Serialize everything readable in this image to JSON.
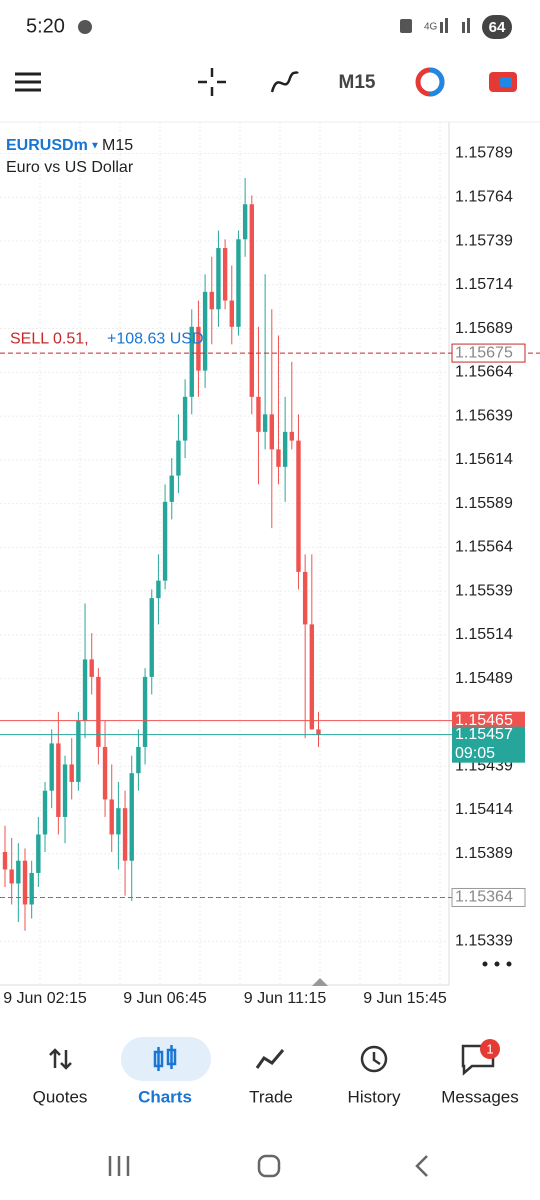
{
  "status_bar": {
    "time": "5:20",
    "battery": "64"
  },
  "toolbar": {
    "timeframe": "M15"
  },
  "chart_data": {
    "type": "candlestick",
    "symbol": "EURUSDm",
    "timeframe": "M15",
    "description": "Euro vs US Dollar",
    "trade_label": "SELL 0.51,",
    "profit_label": "+108.63 USD",
    "open": [
      1.1539,
      1.1538,
      1.15372,
      1.15385,
      1.1536,
      1.15378,
      1.154,
      1.15425,
      1.15452,
      1.1541,
      1.1544,
      1.1543,
      1.15465,
      1.155,
      1.1549,
      1.1545,
      1.1542,
      1.154,
      1.15415,
      1.15385,
      1.15435,
      1.1545,
      1.1549,
      1.15535,
      1.15545,
      1.1559,
      1.15605,
      1.15625,
      1.1565,
      1.1569,
      1.15665,
      1.1571,
      1.157,
      1.15735,
      1.15705,
      1.1569,
      1.1574,
      1.1576,
      1.1565,
      1.1563,
      1.1564,
      1.1562,
      1.1561,
      1.1563,
      1.15625,
      1.1555,
      1.1552,
      1.1546
    ],
    "high": [
      1.15405,
      1.15398,
      1.15395,
      1.15392,
      1.15385,
      1.1541,
      1.1543,
      1.1546,
      1.1547,
      1.15445,
      1.15455,
      1.1547,
      1.15532,
      1.15515,
      1.15495,
      1.15465,
      1.1544,
      1.1543,
      1.15425,
      1.15445,
      1.1546,
      1.15495,
      1.1554,
      1.1556,
      1.156,
      1.15615,
      1.1564,
      1.1566,
      1.157,
      1.15705,
      1.1572,
      1.1573,
      1.15745,
      1.1574,
      1.15725,
      1.15745,
      1.15775,
      1.15765,
      1.1569,
      1.1572,
      1.157,
      1.15685,
      1.1565,
      1.1567,
      1.1564,
      1.1556,
      1.1556,
      1.1547
    ],
    "low": [
      1.1537,
      1.1536,
      1.1535,
      1.15345,
      1.15352,
      1.1537,
      1.1539,
      1.15415,
      1.154,
      1.15395,
      1.1542,
      1.15425,
      1.15455,
      1.1548,
      1.1544,
      1.1541,
      1.1539,
      1.1538,
      1.15365,
      1.15362,
      1.15425,
      1.1544,
      1.1548,
      1.1552,
      1.1554,
      1.1558,
      1.15595,
      1.15615,
      1.1564,
      1.1565,
      1.15655,
      1.1568,
      1.1569,
      1.157,
      1.1568,
      1.15685,
      1.1573,
      1.1564,
      1.156,
      1.1562,
      1.15575,
      1.156,
      1.1559,
      1.1562,
      1.1554,
      1.15455,
      1.1546,
      1.1545
    ],
    "close": [
      1.1538,
      1.15372,
      1.15385,
      1.1536,
      1.15378,
      1.154,
      1.15425,
      1.15452,
      1.1541,
      1.1544,
      1.1543,
      1.15465,
      1.155,
      1.1549,
      1.1545,
      1.1542,
      1.154,
      1.15415,
      1.15385,
      1.15435,
      1.1545,
      1.1549,
      1.15535,
      1.15545,
      1.1559,
      1.15605,
      1.15625,
      1.1565,
      1.1569,
      1.15665,
      1.1571,
      1.157,
      1.15735,
      1.15705,
      1.1569,
      1.1574,
      1.1576,
      1.1565,
      1.1563,
      1.1564,
      1.1562,
      1.1561,
      1.1563,
      1.15625,
      1.1555,
      1.1552,
      1.1546,
      1.15457
    ],
    "up_color": "#26a69a",
    "down_color": "#ef5350",
    "x_labels": [
      "9 Jun 02:15",
      "9 Jun 06:45",
      "9 Jun 11:15",
      "9 Jun 15:45"
    ],
    "ylim": [
      1.15314,
      1.15807
    ],
    "yticks": [
      1.15789,
      1.15764,
      1.15739,
      1.15714,
      1.15689,
      1.15664,
      1.15639,
      1.15614,
      1.15589,
      1.15564,
      1.15539,
      1.15514,
      1.15489,
      1.15439,
      1.15414,
      1.15389,
      1.15339
    ],
    "grid": true,
    "sell_level": 1.15675,
    "ask": 1.15465,
    "bid": 1.15457,
    "bar_timer": "09:05",
    "level": 1.15364
  },
  "nav": {
    "items": [
      "Quotes",
      "Charts",
      "Trade",
      "History",
      "Messages"
    ],
    "badge": "1"
  }
}
